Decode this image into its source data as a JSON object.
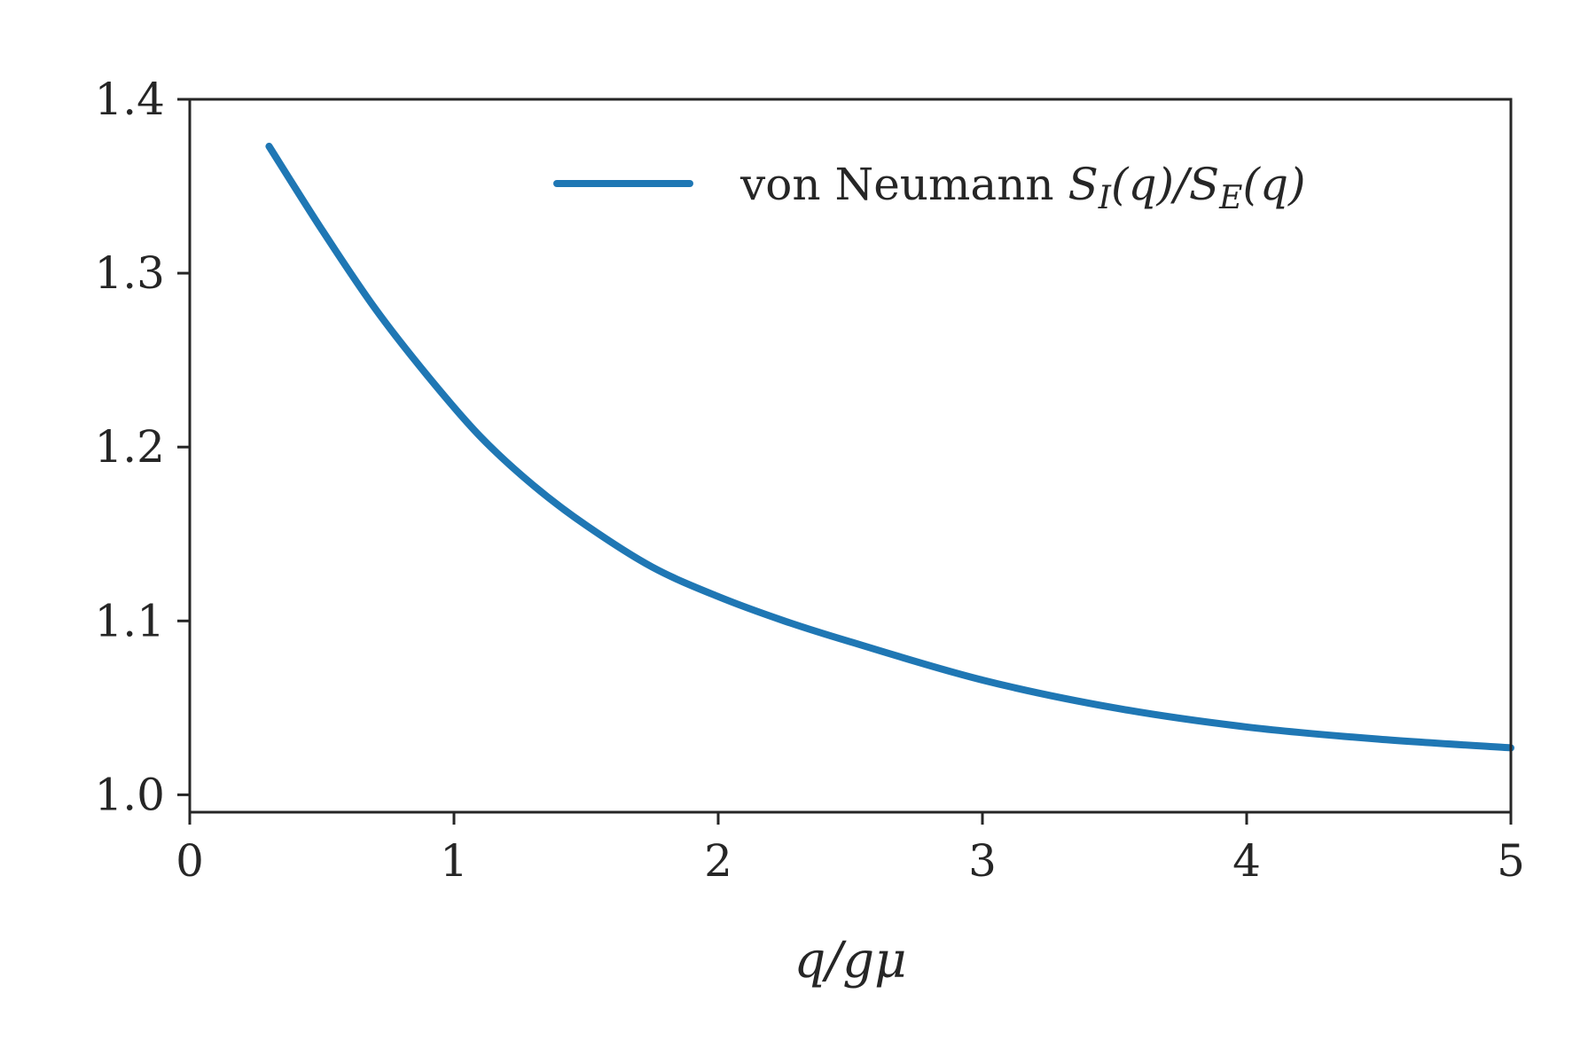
{
  "chart_data": {
    "type": "line",
    "title": "",
    "xlabel": "q/gμ",
    "ylabel": "",
    "xlim": [
      0,
      5
    ],
    "ylim": [
      0.99,
      1.4
    ],
    "xticks": [
      0,
      1,
      2,
      3,
      4,
      5
    ],
    "xtick_labels": [
      "0",
      "1",
      "2",
      "3",
      "4",
      "5"
    ],
    "yticks": [
      1.0,
      1.1,
      1.2,
      1.3,
      1.4
    ],
    "ytick_labels": [
      "1.0",
      "1.1",
      "1.2",
      "1.3",
      "1.4"
    ],
    "grid": false,
    "legend_position": "top-right",
    "series": [
      {
        "name": "von Neumann S_I(q)/S_E(q)",
        "color": "#1f77b4",
        "x": [
          0.3,
          0.5,
          0.7,
          0.9,
          1.1,
          1.3,
          1.5,
          1.75,
          2.0,
          2.25,
          2.5,
          3.0,
          3.5,
          4.0,
          4.5,
          5.0
        ],
        "y": [
          1.373,
          1.325,
          1.28,
          1.241,
          1.206,
          1.178,
          1.155,
          1.131,
          1.114,
          1.1,
          1.088,
          1.066,
          1.05,
          1.039,
          1.032,
          1.027
        ]
      }
    ]
  },
  "legend": {
    "prefix": "von Neumann ",
    "s1": "S",
    "sub1": "I",
    "q1": "(q)/",
    "s2": "S",
    "sub2": "E",
    "q2": "(q)"
  }
}
